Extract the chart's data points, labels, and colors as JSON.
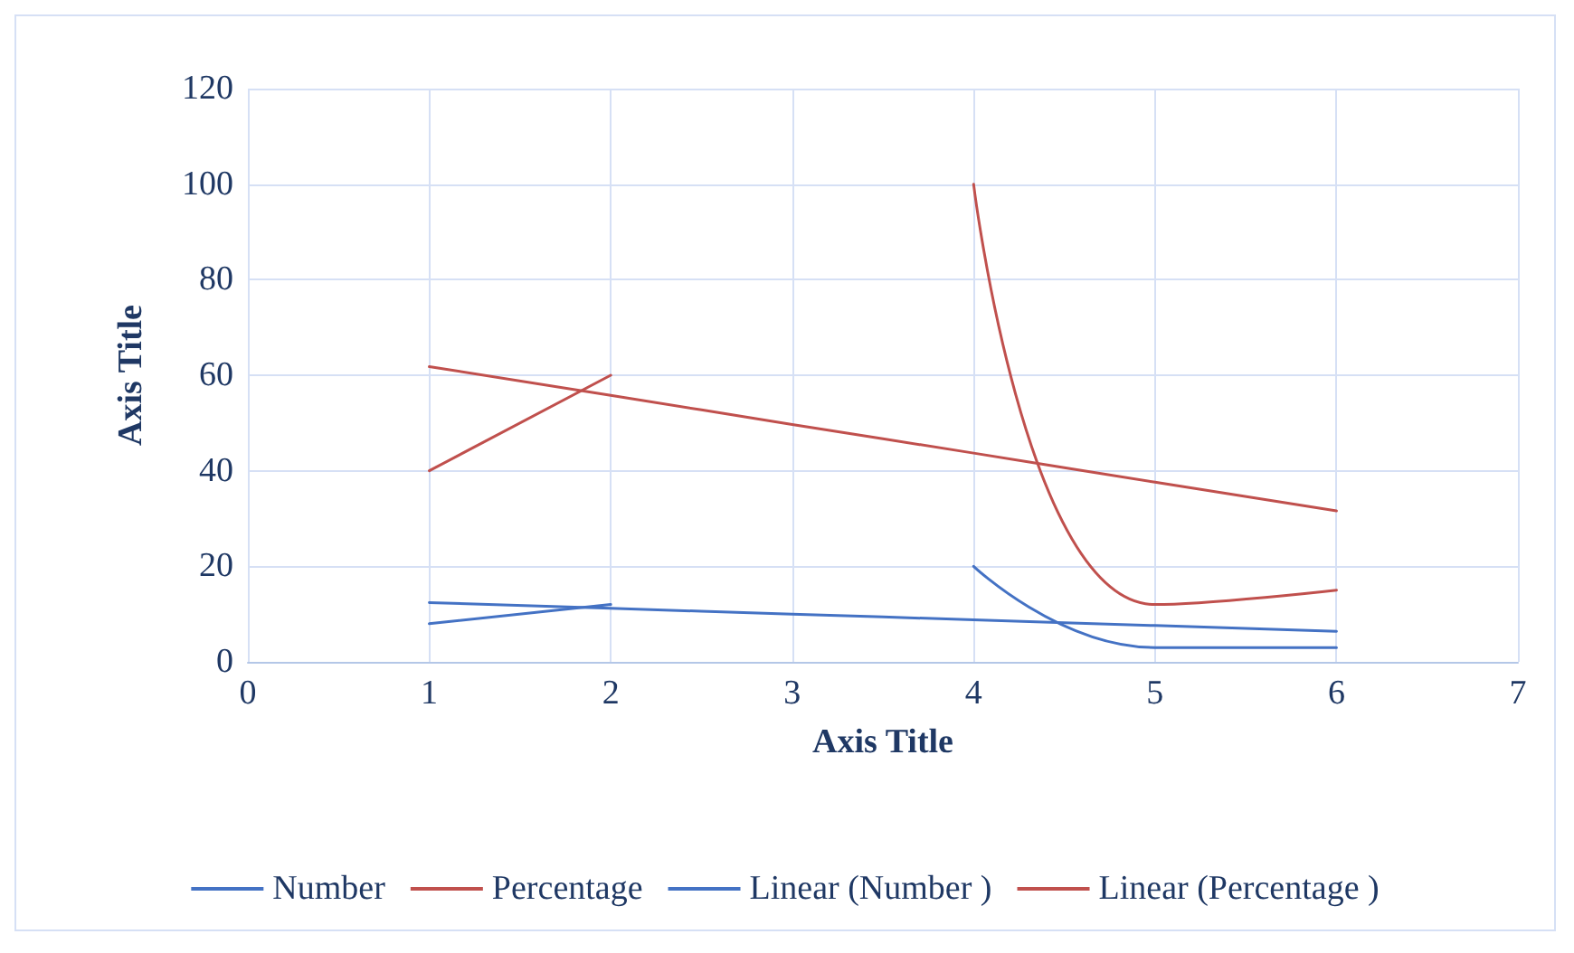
{
  "chart_data": {
    "type": "line",
    "xlabel": "Axis Title",
    "ylabel": "Axis Title",
    "x": [
      1,
      2,
      3,
      4,
      5,
      6
    ],
    "series": [
      {
        "name": "Number",
        "color": "#4472c4",
        "values": [
          8,
          12,
          null,
          20,
          3,
          3
        ]
      },
      {
        "name": "Percentage",
        "color": "#c0504d",
        "values": [
          40,
          60,
          null,
          100,
          12,
          15
        ]
      },
      {
        "name": "Linear (Number )",
        "color": "#4472c4",
        "values": [
          12.4,
          11.2,
          10,
          8.8,
          7.6,
          6.4
        ]
      },
      {
        "name": "Linear (Percentage )",
        "color": "#c0504d",
        "values": [
          61.8,
          55.8,
          49.7,
          43.7,
          37.6,
          31.6
        ]
      }
    ],
    "xlim": [
      0,
      7
    ],
    "xticks": [
      0,
      1,
      2,
      3,
      4,
      5,
      6,
      7
    ],
    "ylim": [
      0,
      120
    ],
    "yticks": [
      0,
      20,
      40,
      60,
      80,
      100,
      120
    ],
    "grid": true,
    "legend": "bottom",
    "marker": "none",
    "line_style": "solid"
  }
}
